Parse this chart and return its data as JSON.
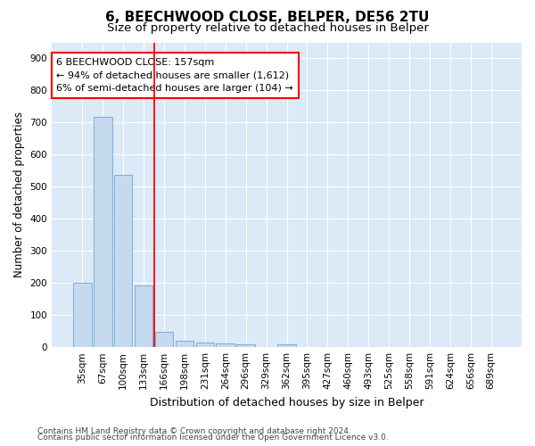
{
  "title": "6, BEECHWOOD CLOSE, BELPER, DE56 2TU",
  "subtitle": "Size of property relative to detached houses in Belper",
  "xlabel": "Distribution of detached houses by size in Belper",
  "ylabel": "Number of detached properties",
  "bar_color": "#c5d9ef",
  "bar_edge_color": "#7aafd4",
  "background_color": "#dce9f7",
  "grid_color": "#ffffff",
  "categories": [
    "35sqm",
    "67sqm",
    "100sqm",
    "133sqm",
    "166sqm",
    "198sqm",
    "231sqm",
    "264sqm",
    "296sqm",
    "329sqm",
    "362sqm",
    "395sqm",
    "427sqm",
    "460sqm",
    "493sqm",
    "525sqm",
    "558sqm",
    "591sqm",
    "624sqm",
    "656sqm",
    "689sqm"
  ],
  "values": [
    200,
    717,
    537,
    193,
    47,
    20,
    14,
    13,
    10,
    0,
    10,
    0,
    0,
    0,
    0,
    0,
    0,
    0,
    0,
    0,
    0
  ],
  "red_line_bin": 4,
  "annotation_line1": "6 BEECHWOOD CLOSE: 157sqm",
  "annotation_line2": "← 94% of detached houses are smaller (1,612)",
  "annotation_line3": "6% of semi-detached houses are larger (104) →",
  "ylim": [
    0,
    950
  ],
  "yticks": [
    0,
    100,
    200,
    300,
    400,
    500,
    600,
    700,
    800,
    900
  ],
  "footnote1": "Contains HM Land Registry data © Crown copyright and database right 2024.",
  "footnote2": "Contains public sector information licensed under the Open Government Licence v3.0.",
  "title_fontsize": 11,
  "subtitle_fontsize": 9.5,
  "xlabel_fontsize": 9,
  "ylabel_fontsize": 8.5,
  "tick_fontsize": 7.5,
  "annotation_fontsize": 8,
  "footnote_fontsize": 6.5
}
